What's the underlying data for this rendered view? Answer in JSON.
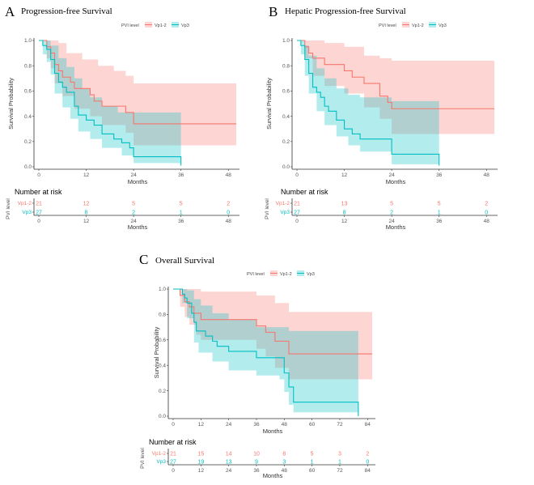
{
  "colors": {
    "vp12": "#F8766D",
    "vp3": "#00BFC4",
    "vp12_fill": "#F8766D",
    "vp3_fill": "#00BFC4"
  },
  "common": {
    "ylabel": "Survival Probability",
    "xlabel": "Months",
    "legend_title": "PVI level",
    "legend_labels": [
      "Vp1-2",
      "Vp3"
    ],
    "risk_title": "Number at risk",
    "risk_ylabel": "PVI level",
    "risk_rows": [
      "Vp1-2",
      "Vp3"
    ]
  },
  "chart_data": [
    {
      "type": "line",
      "panel_letter": "A",
      "title": "Progression-free Survival",
      "xlabel": "Months",
      "ylabel": "Survival Probability",
      "xlim": [
        0,
        50
      ],
      "ylim": [
        0,
        1
      ],
      "x_ticks": [
        0,
        12,
        24,
        36,
        48
      ],
      "y_ticks": [
        "0.0",
        "0.2",
        "0.4",
        "0.6",
        "0.8",
        "1.0"
      ],
      "legend": "top",
      "series": [
        {
          "name": "Vp1-2",
          "steps": [
            [
              0,
              1
            ],
            [
              2,
              0.95
            ],
            [
              3,
              0.9
            ],
            [
              4,
              0.81
            ],
            [
              5,
              0.76
            ],
            [
              6,
              0.71
            ],
            [
              8,
              0.67
            ],
            [
              9,
              0.62
            ],
            [
              13,
              0.57
            ],
            [
              14,
              0.52
            ],
            [
              16,
              0.48
            ],
            [
              22,
              0.43
            ],
            [
              24,
              0.34
            ],
            [
              50,
              0.34
            ]
          ],
          "upper": [
            [
              0,
              1
            ],
            [
              2,
              1
            ],
            [
              3,
              1
            ],
            [
              5,
              0.98
            ],
            [
              7,
              0.9
            ],
            [
              11,
              0.85
            ],
            [
              15,
              0.8
            ],
            [
              19,
              0.76
            ],
            [
              22,
              0.72
            ],
            [
              24,
              0.66
            ],
            [
              50,
              0.66
            ]
          ],
          "lower": [
            [
              0,
              1
            ],
            [
              2,
              0.86
            ],
            [
              3,
              0.78
            ],
            [
              4,
              0.66
            ],
            [
              6,
              0.56
            ],
            [
              9,
              0.46
            ],
            [
              13,
              0.4
            ],
            [
              16,
              0.33
            ],
            [
              22,
              0.27
            ],
            [
              24,
              0.17
            ],
            [
              50,
              0.17
            ]
          ]
        },
        {
          "name": "Vp3",
          "steps": [
            [
              0,
              1
            ],
            [
              1,
              0.96
            ],
            [
              2,
              0.93
            ],
            [
              3,
              0.85
            ],
            [
              4,
              0.74
            ],
            [
              5,
              0.67
            ],
            [
              6,
              0.63
            ],
            [
              7,
              0.59
            ],
            [
              9,
              0.48
            ],
            [
              10,
              0.41
            ],
            [
              12,
              0.37
            ],
            [
              14,
              0.33
            ],
            [
              16,
              0.26
            ],
            [
              19,
              0.22
            ],
            [
              21,
              0.19
            ],
            [
              23,
              0.15
            ],
            [
              24,
              0.08
            ],
            [
              36,
              0.08
            ],
            [
              36,
              0.01
            ]
          ],
          "upper": [
            [
              0,
              1
            ],
            [
              1,
              1
            ],
            [
              2,
              1
            ],
            [
              3,
              0.96
            ],
            [
              5,
              0.86
            ],
            [
              7,
              0.79
            ],
            [
              9,
              0.7
            ],
            [
              11,
              0.62
            ],
            [
              13,
              0.55
            ],
            [
              16,
              0.48
            ],
            [
              20,
              0.43
            ],
            [
              24,
              0.43
            ],
            [
              36,
              0.43
            ]
          ],
          "lower": [
            [
              0,
              1
            ],
            [
              1,
              0.89
            ],
            [
              2,
              0.83
            ],
            [
              3,
              0.73
            ],
            [
              4,
              0.58
            ],
            [
              6,
              0.47
            ],
            [
              8,
              0.38
            ],
            [
              10,
              0.28
            ],
            [
              13,
              0.22
            ],
            [
              16,
              0.15
            ],
            [
              21,
              0.09
            ],
            [
              24,
              0.03
            ],
            [
              36,
              0.0
            ]
          ]
        }
      ],
      "risk_x": [
        0,
        12,
        24,
        36,
        48
      ],
      "risk_table": [
        [
          "21",
          "12",
          "5",
          "5",
          "2"
        ],
        [
          "27",
          "8",
          "2",
          "1",
          "0"
        ]
      ]
    },
    {
      "type": "line",
      "panel_letter": "B",
      "title": "Hepatic Progression-free Survival",
      "xlabel": "Months",
      "ylabel": "Survival Probability",
      "xlim": [
        0,
        50
      ],
      "ylim": [
        0,
        1
      ],
      "x_ticks": [
        0,
        12,
        24,
        36,
        48
      ],
      "y_ticks": [
        "0.0",
        "0.2",
        "0.4",
        "0.6",
        "0.8",
        "1.0"
      ],
      "legend": "top",
      "series": [
        {
          "name": "Vp1-2",
          "steps": [
            [
              0,
              1
            ],
            [
              2,
              0.95
            ],
            [
              3,
              0.9
            ],
            [
              4,
              0.86
            ],
            [
              7,
              0.81
            ],
            [
              12,
              0.76
            ],
            [
              14,
              0.71
            ],
            [
              17,
              0.66
            ],
            [
              21,
              0.56
            ],
            [
              23,
              0.51
            ],
            [
              24,
              0.46
            ],
            [
              50,
              0.46
            ]
          ],
          "upper": [
            [
              0,
              1
            ],
            [
              2,
              1
            ],
            [
              4,
              1
            ],
            [
              7,
              0.98
            ],
            [
              12,
              0.95
            ],
            [
              17,
              0.88
            ],
            [
              21,
              0.86
            ],
            [
              24,
              0.84
            ],
            [
              50,
              0.84
            ]
          ],
          "lower": [
            [
              0,
              1
            ],
            [
              2,
              0.86
            ],
            [
              4,
              0.72
            ],
            [
              7,
              0.64
            ],
            [
              12,
              0.58
            ],
            [
              17,
              0.47
            ],
            [
              21,
              0.38
            ],
            [
              24,
              0.26
            ],
            [
              50,
              0.26
            ]
          ]
        },
        {
          "name": "Vp3",
          "steps": [
            [
              0,
              1
            ],
            [
              1,
              0.96
            ],
            [
              2,
              0.85
            ],
            [
              3,
              0.74
            ],
            [
              4,
              0.63
            ],
            [
              5,
              0.59
            ],
            [
              6,
              0.55
            ],
            [
              7,
              0.48
            ],
            [
              8,
              0.44
            ],
            [
              10,
              0.37
            ],
            [
              12,
              0.3
            ],
            [
              14,
              0.26
            ],
            [
              16,
              0.22
            ],
            [
              20,
              0.22
            ],
            [
              24,
              0.1
            ],
            [
              36,
              0.1
            ],
            [
              36,
              0.01
            ]
          ],
          "upper": [
            [
              0,
              1
            ],
            [
              1,
              1
            ],
            [
              2,
              0.96
            ],
            [
              3,
              0.88
            ],
            [
              5,
              0.78
            ],
            [
              7,
              0.7
            ],
            [
              10,
              0.62
            ],
            [
              13,
              0.57
            ],
            [
              16,
              0.55
            ],
            [
              24,
              0.52
            ],
            [
              36,
              0.52
            ]
          ],
          "lower": [
            [
              0,
              1
            ],
            [
              1,
              0.89
            ],
            [
              2,
              0.72
            ],
            [
              3,
              0.58
            ],
            [
              5,
              0.44
            ],
            [
              7,
              0.33
            ],
            [
              10,
              0.24
            ],
            [
              13,
              0.17
            ],
            [
              16,
              0.12
            ],
            [
              24,
              0.02
            ],
            [
              36,
              0.0
            ]
          ]
        }
      ],
      "risk_x": [
        0,
        12,
        24,
        36,
        48
      ],
      "risk_table": [
        [
          "21",
          "13",
          "5",
          "5",
          "2"
        ],
        [
          "27",
          "8",
          "2",
          "1",
          "0"
        ]
      ]
    },
    {
      "type": "line",
      "panel_letter": "C",
      "title": "Overall Survival",
      "xlabel": "Months",
      "ylabel": "Survival Probability",
      "xlim": [
        0,
        86
      ],
      "ylim": [
        0,
        1
      ],
      "x_ticks": [
        0,
        12,
        24,
        36,
        48,
        60,
        72,
        84
      ],
      "y_ticks": [
        "0.0",
        "0.2",
        "0.4",
        "0.6",
        "0.8",
        "1.0"
      ],
      "legend": "top",
      "series": [
        {
          "name": "Vp1-2",
          "steps": [
            [
              0,
              1
            ],
            [
              3,
              0.95
            ],
            [
              5,
              0.9
            ],
            [
              7,
              0.86
            ],
            [
              9,
              0.81
            ],
            [
              12,
              0.76
            ],
            [
              36,
              0.71
            ],
            [
              40,
              0.66
            ],
            [
              44,
              0.59
            ],
            [
              50,
              0.49
            ],
            [
              86,
              0.49
            ]
          ],
          "upper": [
            [
              0,
              1
            ],
            [
              3,
              1
            ],
            [
              7,
              1
            ],
            [
              12,
              0.98
            ],
            [
              36,
              0.95
            ],
            [
              44,
              0.89
            ],
            [
              50,
              0.82
            ],
            [
              86,
              0.82
            ]
          ],
          "lower": [
            [
              0,
              1
            ],
            [
              3,
              0.86
            ],
            [
              5,
              0.78
            ],
            [
              7,
              0.72
            ],
            [
              10,
              0.64
            ],
            [
              12,
              0.6
            ],
            [
              36,
              0.53
            ],
            [
              40,
              0.47
            ],
            [
              44,
              0.38
            ],
            [
              50,
              0.29
            ],
            [
              86,
              0.29
            ]
          ]
        },
        {
          "name": "Vp3",
          "steps": [
            [
              0,
              1
            ],
            [
              4,
              0.96
            ],
            [
              5,
              0.93
            ],
            [
              6,
              0.89
            ],
            [
              8,
              0.81
            ],
            [
              9,
              0.74
            ],
            [
              10,
              0.67
            ],
            [
              14,
              0.63
            ],
            [
              17,
              0.59
            ],
            [
              19,
              0.55
            ],
            [
              24,
              0.51
            ],
            [
              33,
              0.51
            ],
            [
              36,
              0.46
            ],
            [
              46,
              0.46
            ],
            [
              48,
              0.34
            ],
            [
              50,
              0.23
            ],
            [
              52,
              0.11
            ],
            [
              80,
              0.11
            ],
            [
              80,
              0.0
            ]
          ],
          "upper": [
            [
              0,
              1
            ],
            [
              4,
              1
            ],
            [
              6,
              0.99
            ],
            [
              9,
              0.92
            ],
            [
              12,
              0.87
            ],
            [
              17,
              0.81
            ],
            [
              24,
              0.76
            ],
            [
              36,
              0.7
            ],
            [
              46,
              0.7
            ],
            [
              50,
              0.67
            ],
            [
              80,
              0.67
            ]
          ],
          "lower": [
            [
              0,
              1
            ],
            [
              4,
              0.89
            ],
            [
              6,
              0.77
            ],
            [
              9,
              0.58
            ],
            [
              11,
              0.5
            ],
            [
              17,
              0.43
            ],
            [
              24,
              0.36
            ],
            [
              36,
              0.32
            ],
            [
              46,
              0.29
            ],
            [
              48,
              0.19
            ],
            [
              50,
              0.09
            ],
            [
              52,
              0.03
            ],
            [
              80,
              0.0
            ]
          ]
        }
      ],
      "risk_x": [
        0,
        12,
        24,
        36,
        48,
        60,
        72,
        84
      ],
      "risk_table": [
        [
          "21",
          "15",
          "14",
          "10",
          "8",
          "5",
          "3",
          "2"
        ],
        [
          "27",
          "19",
          "13",
          "9",
          "3",
          "1",
          "1",
          "0"
        ]
      ]
    }
  ]
}
